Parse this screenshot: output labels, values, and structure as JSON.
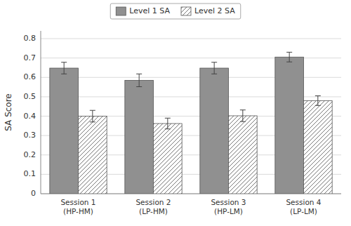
{
  "chart_data": {
    "type": "bar",
    "categories": [
      "Session 1\n(HP-HM)",
      "Session 2\n(LP-HM)",
      "Session 3\n(HP-LM)",
      "Session 4\n(LP-LM)"
    ],
    "series": [
      {
        "name": "Level 1 SA",
        "color": "#909090",
        "values": [
          0.648,
          0.585,
          0.648,
          0.705
        ],
        "errors": [
          0.03,
          0.033,
          0.03,
          0.025
        ]
      },
      {
        "name": "Level 2 SA",
        "color": "#ffffff",
        "values": [
          0.4,
          0.362,
          0.402,
          0.48
        ],
        "errors": [
          0.03,
          0.028,
          0.03,
          0.025
        ]
      }
    ],
    "y_label": "SA Score",
    "ylim": [
      0,
      0.84
    ],
    "yticks": [
      0,
      0.1,
      0.2,
      0.3,
      0.4,
      0.5,
      0.6,
      0.7,
      0.8
    ],
    "grid": true,
    "legend": "top"
  }
}
